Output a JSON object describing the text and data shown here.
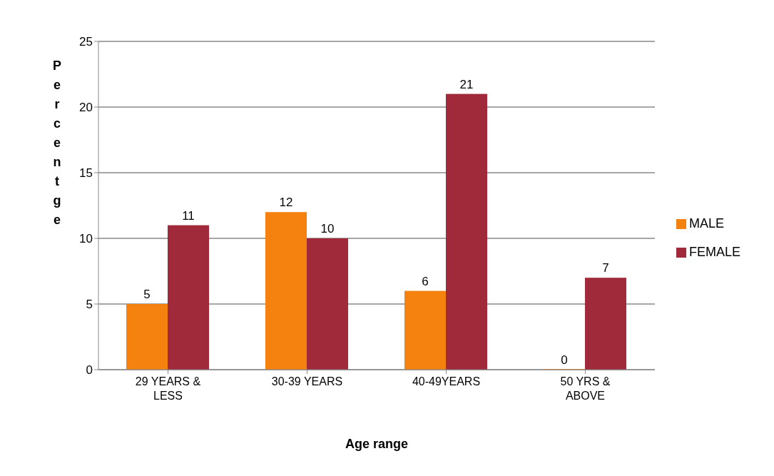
{
  "chart_data": {
    "type": "bar",
    "xlabel": "Age range",
    "ylabel": "Percentge",
    "categories": [
      "29 YEARS & LESS",
      "30-39 YEARS",
      "40-49YEARS",
      "50 YRS & ABOVE"
    ],
    "series": [
      {
        "name": "MALE",
        "color": "#f5820f",
        "values": [
          5,
          12,
          6,
          0
        ]
      },
      {
        "name": "FEMALE",
        "color": "#a0293a",
        "values": [
          11,
          10,
          21,
          7
        ]
      }
    ],
    "ylim": [
      0,
      25
    ],
    "yticks": [
      0,
      5,
      10,
      15,
      20,
      25
    ],
    "grid": "y",
    "legend": "right",
    "data_labels": true
  }
}
